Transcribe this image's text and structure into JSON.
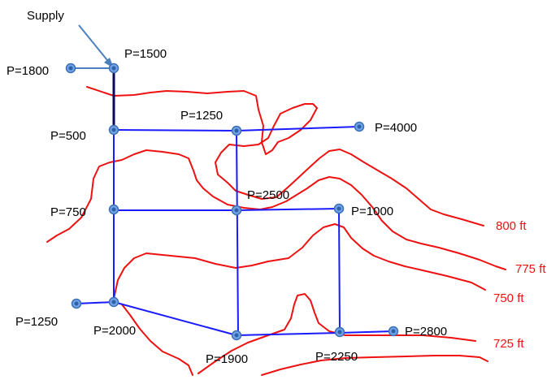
{
  "supply_label": "Supply",
  "colors": {
    "contour": "#ee1111",
    "pipe": "#1a1aff",
    "node": "#6fa3e6"
  },
  "contours": [
    {
      "id": "c800",
      "label": "800 ft"
    },
    {
      "id": "c775",
      "label": "775 ft"
    },
    {
      "id": "c750",
      "label": "750 ft"
    },
    {
      "id": "c725",
      "label": "725 ft"
    }
  ],
  "nodes": [
    {
      "id": "n-supply",
      "label": "P=1500"
    },
    {
      "id": "n-left-top",
      "label": "P=1800"
    },
    {
      "id": "n-a",
      "label": "P=500"
    },
    {
      "id": "n-b",
      "label": "P=1250"
    },
    {
      "id": "n-c",
      "label": "P=4000"
    },
    {
      "id": "n-d",
      "label": "P=750"
    },
    {
      "id": "n-e",
      "label": "P=2500"
    },
    {
      "id": "n-f",
      "label": "P=1000"
    },
    {
      "id": "n-left-bottom",
      "label": "P=1250"
    },
    {
      "id": "n-g",
      "label": "P=2000"
    },
    {
      "id": "n-h",
      "label": "P=1900"
    },
    {
      "id": "n-i",
      "label": "P=2250"
    },
    {
      "id": "n-j",
      "label": "P=2800"
    }
  ]
}
